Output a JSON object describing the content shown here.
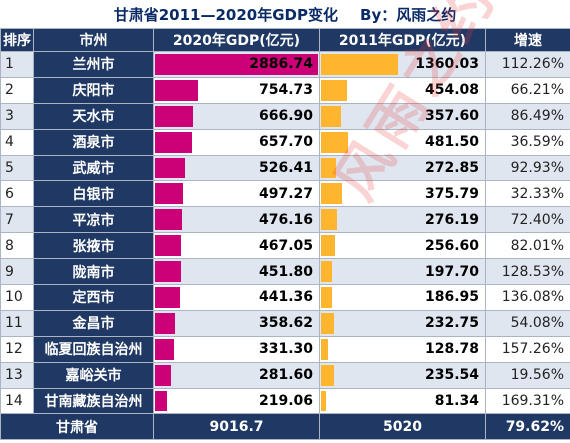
{
  "title": {
    "main": "甘肃省2011—2020年GDP变化",
    "by": "By：风雨之约"
  },
  "headers": {
    "rank": "排序",
    "city": "市州",
    "gdp2020": "2020年GDP(亿元)",
    "gdp2011": "2011年GDP(亿元)",
    "growth": "增速"
  },
  "rows": [
    {
      "rank": "1",
      "city": "兰州市",
      "gdp2020": "2886.74",
      "gdp2011": "1360.03",
      "growth": "112.26%",
      "v20": 2886.74,
      "v11": 1360.03
    },
    {
      "rank": "2",
      "city": "庆阳市",
      "gdp2020": "754.73",
      "gdp2011": "454.08",
      "growth": "66.21%",
      "v20": 754.73,
      "v11": 454.08
    },
    {
      "rank": "3",
      "city": "天水市",
      "gdp2020": "666.90",
      "gdp2011": "357.60",
      "growth": "86.49%",
      "v20": 666.9,
      "v11": 357.6
    },
    {
      "rank": "4",
      "city": "酒泉市",
      "gdp2020": "657.70",
      "gdp2011": "481.50",
      "growth": "36.59%",
      "v20": 657.7,
      "v11": 481.5
    },
    {
      "rank": "5",
      "city": "武威市",
      "gdp2020": "526.41",
      "gdp2011": "272.85",
      "growth": "92.93%",
      "v20": 526.41,
      "v11": 272.85
    },
    {
      "rank": "6",
      "city": "白银市",
      "gdp2020": "497.27",
      "gdp2011": "375.79",
      "growth": "32.33%",
      "v20": 497.27,
      "v11": 375.79
    },
    {
      "rank": "7",
      "city": "平凉市",
      "gdp2020": "476.16",
      "gdp2011": "276.19",
      "growth": "72.40%",
      "v20": 476.16,
      "v11": 276.19
    },
    {
      "rank": "8",
      "city": "张掖市",
      "gdp2020": "467.05",
      "gdp2011": "256.60",
      "growth": "82.01%",
      "v20": 467.05,
      "v11": 256.6
    },
    {
      "rank": "9",
      "city": "陇南市",
      "gdp2020": "451.80",
      "gdp2011": "197.70",
      "growth": "128.53%",
      "v20": 451.8,
      "v11": 197.7
    },
    {
      "rank": "10",
      "city": "定西市",
      "gdp2020": "441.36",
      "gdp2011": "186.95",
      "growth": "136.08%",
      "v20": 441.36,
      "v11": 186.95
    },
    {
      "rank": "11",
      "city": "金昌市",
      "gdp2020": "358.62",
      "gdp2011": "232.75",
      "growth": "54.08%",
      "v20": 358.62,
      "v11": 232.75
    },
    {
      "rank": "12",
      "city": "临夏回族自治州",
      "gdp2020": "331.30",
      "gdp2011": "128.78",
      "growth": "157.26%",
      "v20": 331.3,
      "v11": 128.78
    },
    {
      "rank": "13",
      "city": "嘉峪关市",
      "gdp2020": "281.60",
      "gdp2011": "235.54",
      "growth": "19.56%",
      "v20": 281.6,
      "v11": 235.54
    },
    {
      "rank": "14",
      "city": "甘南藏族自治州",
      "gdp2020": "219.06",
      "gdp2011": "81.34",
      "growth": "169.31%",
      "v20": 219.06,
      "v11": 81.34
    }
  ],
  "total": {
    "label": "甘肃省",
    "gdp2020": "9016.7",
    "gdp2011": "5020",
    "growth": "79.62%"
  },
  "watermark": "风雨之约",
  "colors": {
    "header": "#1f3864",
    "bar2020": "#cc0077",
    "bar2011": "#ffb52e",
    "rowAlt": "#dfe6f0"
  }
}
